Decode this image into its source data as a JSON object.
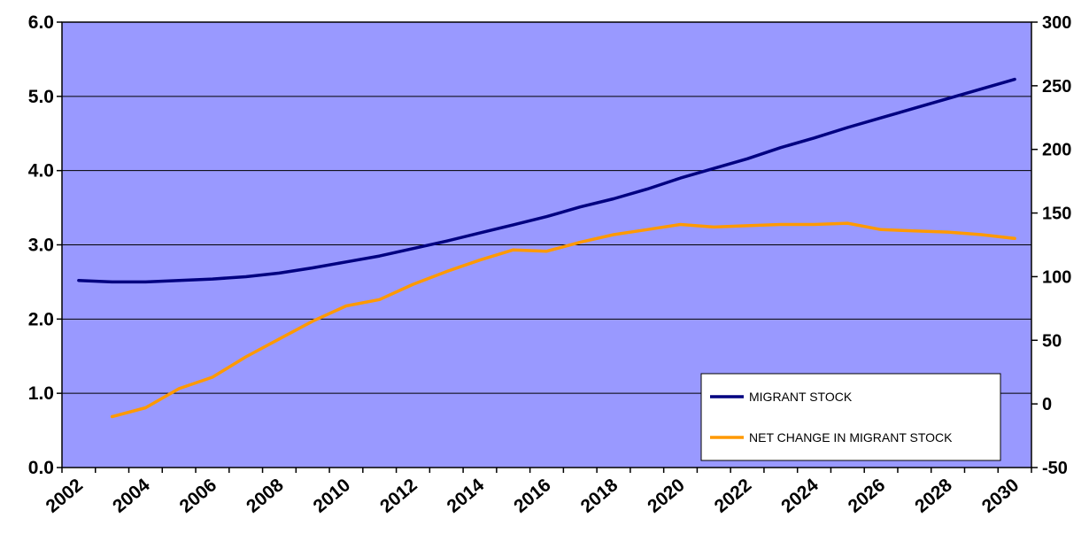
{
  "chart_data": {
    "type": "line",
    "title": "",
    "x": [
      2002,
      2003,
      2004,
      2005,
      2006,
      2007,
      2008,
      2009,
      2010,
      2011,
      2012,
      2013,
      2014,
      2015,
      2016,
      2017,
      2018,
      2019,
      2020,
      2021,
      2022,
      2023,
      2024,
      2025,
      2026,
      2027,
      2028,
      2029,
      2030
    ],
    "x_tick_labels": [
      "2002",
      "2004",
      "2006",
      "2008",
      "2010",
      "2012",
      "2014",
      "2016",
      "2018",
      "2020",
      "2022",
      "2024",
      "2026",
      "2028",
      "2030"
    ],
    "y_left": {
      "range": [
        0,
        6
      ],
      "tick_labels": [
        "0.0",
        "1.0",
        "2.0",
        "3.0",
        "4.0",
        "5.0",
        "6.0"
      ]
    },
    "y_right": {
      "range": [
        -50,
        300
      ],
      "tick_labels": [
        "-50",
        "0",
        "50",
        "100",
        "150",
        "200",
        "250",
        "300"
      ]
    },
    "grid": "horizontal",
    "plot_background": "#9999ff",
    "legend_position": "bottom-right",
    "series": [
      {
        "name": "MIGRANT STOCK",
        "axis": "left",
        "color": "#000080",
        "x": [
          2002,
          2003,
          2004,
          2005,
          2006,
          2007,
          2008,
          2009,
          2010,
          2011,
          2012,
          2013,
          2014,
          2015,
          2016,
          2017,
          2018,
          2019,
          2020,
          2021,
          2022,
          2023,
          2024,
          2025,
          2026,
          2027,
          2028,
          2029,
          2030
        ],
        "values": [
          2.52,
          2.5,
          2.5,
          2.52,
          2.54,
          2.57,
          2.62,
          2.69,
          2.77,
          2.85,
          2.95,
          3.05,
          3.16,
          3.27,
          3.38,
          3.51,
          3.62,
          3.75,
          3.9,
          4.03,
          4.16,
          4.31,
          4.44,
          4.58,
          4.71,
          4.84,
          4.97,
          5.1,
          5.23
        ]
      },
      {
        "name": "NET CHANGE IN MIGRANT STOCK",
        "axis": "right",
        "color": "#ff9900",
        "x": [
          2003,
          2004,
          2005,
          2006,
          2007,
          2008,
          2009,
          2010,
          2011,
          2012,
          2013,
          2014,
          2015,
          2016,
          2017,
          2018,
          2019,
          2020,
          2021,
          2022,
          2023,
          2024,
          2025,
          2026,
          2027,
          2028,
          2029,
          2030
        ],
        "values": [
          -10,
          -3,
          12,
          21,
          37,
          51,
          65,
          77,
          82,
          94,
          104,
          113,
          121,
          120,
          127,
          133,
          137,
          141,
          139,
          140,
          141,
          141,
          142,
          137,
          136,
          135,
          133,
          130
        ]
      }
    ]
  }
}
